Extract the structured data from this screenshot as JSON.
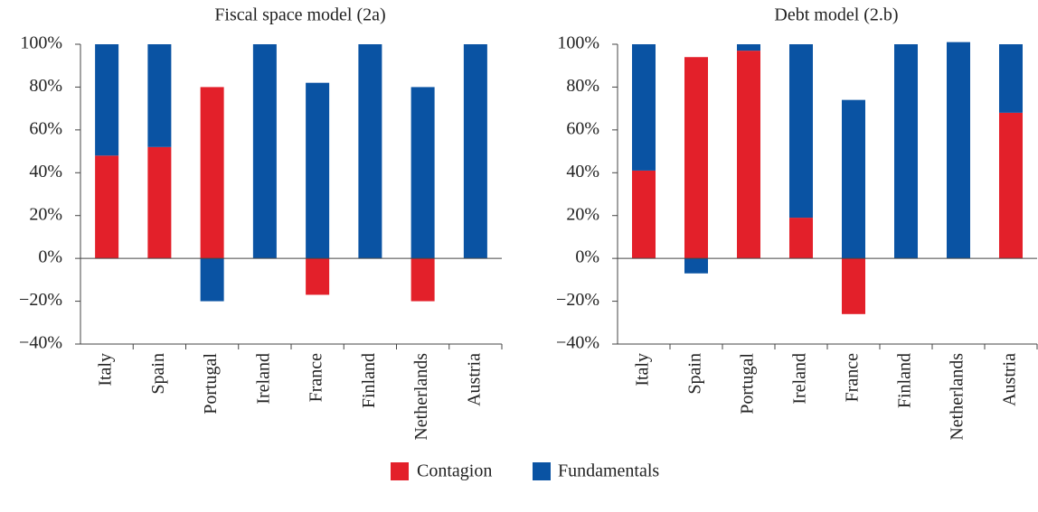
{
  "chart_data": [
    {
      "type": "bar",
      "stacked": true,
      "title": "Fiscal space model (2a)",
      "categories": [
        "Italy",
        "Spain",
        "Portugal",
        "Ireland",
        "France",
        "Finland",
        "Netherlands",
        "Austria"
      ],
      "series": [
        {
          "name": "Contagion",
          "color": "#e3202a",
          "values": [
            48,
            52,
            80,
            0,
            -17,
            0,
            -20,
            0
          ]
        },
        {
          "name": "Fundamentals",
          "color": "#0a53a3",
          "values": [
            52,
            48,
            -20,
            100,
            82,
            100,
            80,
            100
          ]
        }
      ],
      "ylim": [
        -40,
        100
      ],
      "yticks": [
        {
          "value": -40,
          "label": "−40%"
        },
        {
          "value": -20,
          "label": "−20%"
        },
        {
          "value": 0,
          "label": "0%"
        },
        {
          "value": 20,
          "label": "20%"
        },
        {
          "value": 40,
          "label": "40%"
        },
        {
          "value": 60,
          "label": "60%"
        },
        {
          "value": 80,
          "label": "80%"
        },
        {
          "value": 100,
          "label": "100%"
        }
      ]
    },
    {
      "type": "bar",
      "stacked": true,
      "title": "Debt model (2.b)",
      "categories": [
        "Italy",
        "Spain",
        "Portugal",
        "Ireland",
        "France",
        "Finland",
        "Netherlands",
        "Austria"
      ],
      "series": [
        {
          "color": "#e3202a",
          "values": [
            41,
            94,
            97,
            19,
            -26,
            0,
            0,
            68
          ]
        },
        {
          "color": "#0a53a3",
          "values": [
            59,
            -7,
            3,
            81,
            74,
            100,
            101,
            32
          ]
        }
      ],
      "ylim": [
        -40,
        100
      ],
      "yticks": [
        {
          "value": -40,
          "label": "−40%"
        },
        {
          "value": -20,
          "label": "−20%"
        },
        {
          "value": 0,
          "label": "0%"
        },
        {
          "value": 20,
          "label": "20%"
        },
        {
          "value": 40,
          "label": "40%"
        },
        {
          "value": 60,
          "label": "60%"
        },
        {
          "value": 80,
          "label": "80%"
        },
        {
          "value": 100,
          "label": "100%"
        }
      ]
    }
  ]
}
